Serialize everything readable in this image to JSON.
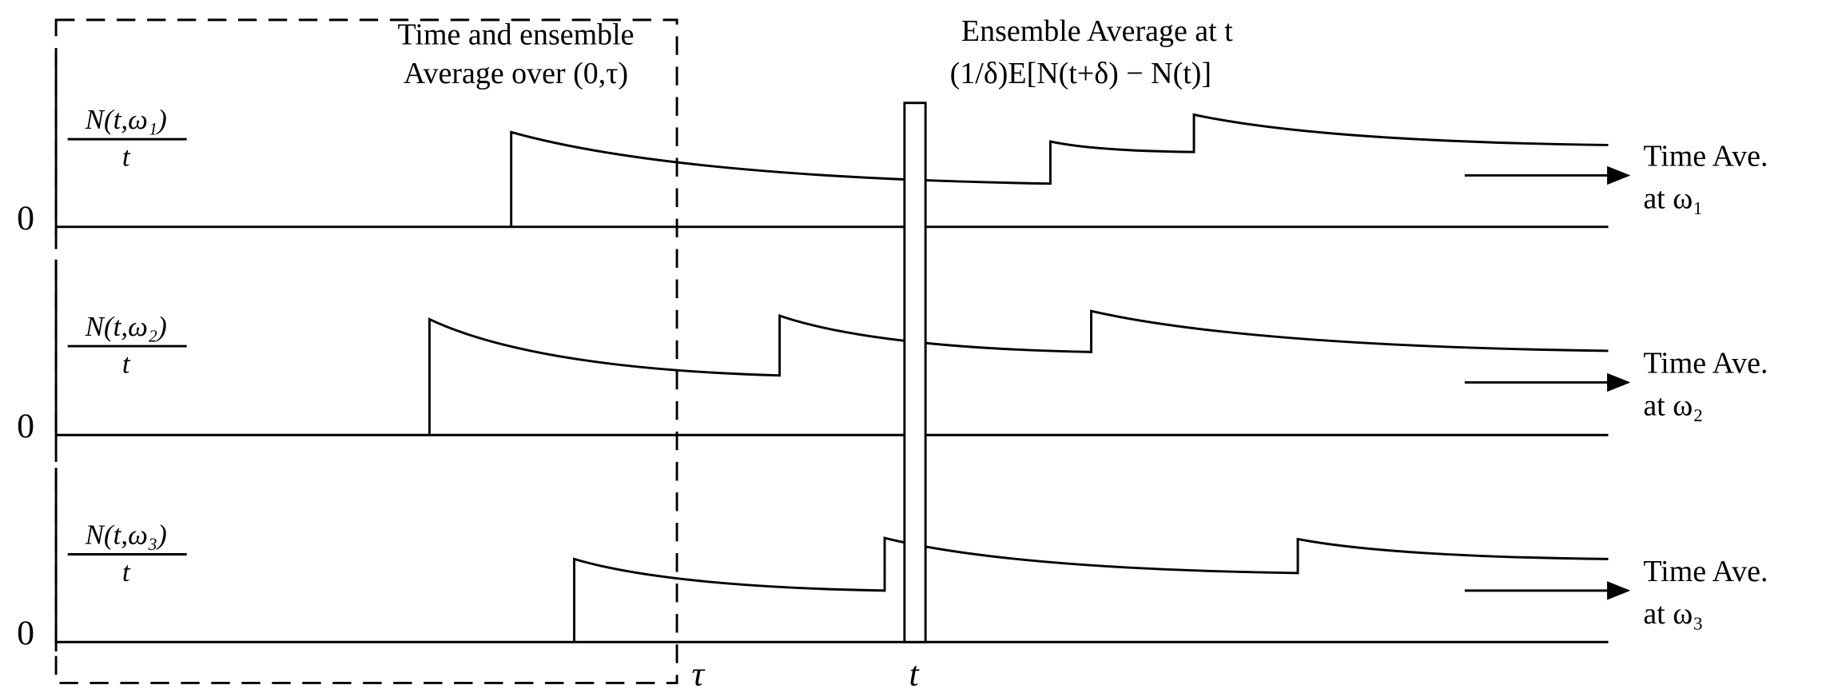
{
  "header": {
    "left_title": [
      "Time and ensemble",
      "Average over (0,τ)"
    ],
    "right_title": [
      "Ensemble Average at t",
      "(1/δ)E[N(t+δ) − N(t)]"
    ]
  },
  "rows": [
    {
      "numerator": "N(t,ω₁)",
      "denominator": "t",
      "zero": "0",
      "label_line1": "Time Ave.",
      "label_line2": "at ω₁"
    },
    {
      "numerator": "N(t,ω₂)",
      "denominator": "t",
      "zero": "0",
      "label_line1": "Time Ave.",
      "label_line2": "at ω₂"
    },
    {
      "numerator": "N(t,ω₃)",
      "denominator": "t",
      "zero": "0",
      "label_line1": "Time Ave.",
      "label_line2": "at ω₃"
    }
  ],
  "axis_labels": {
    "tau": "τ",
    "t": "t"
  }
}
